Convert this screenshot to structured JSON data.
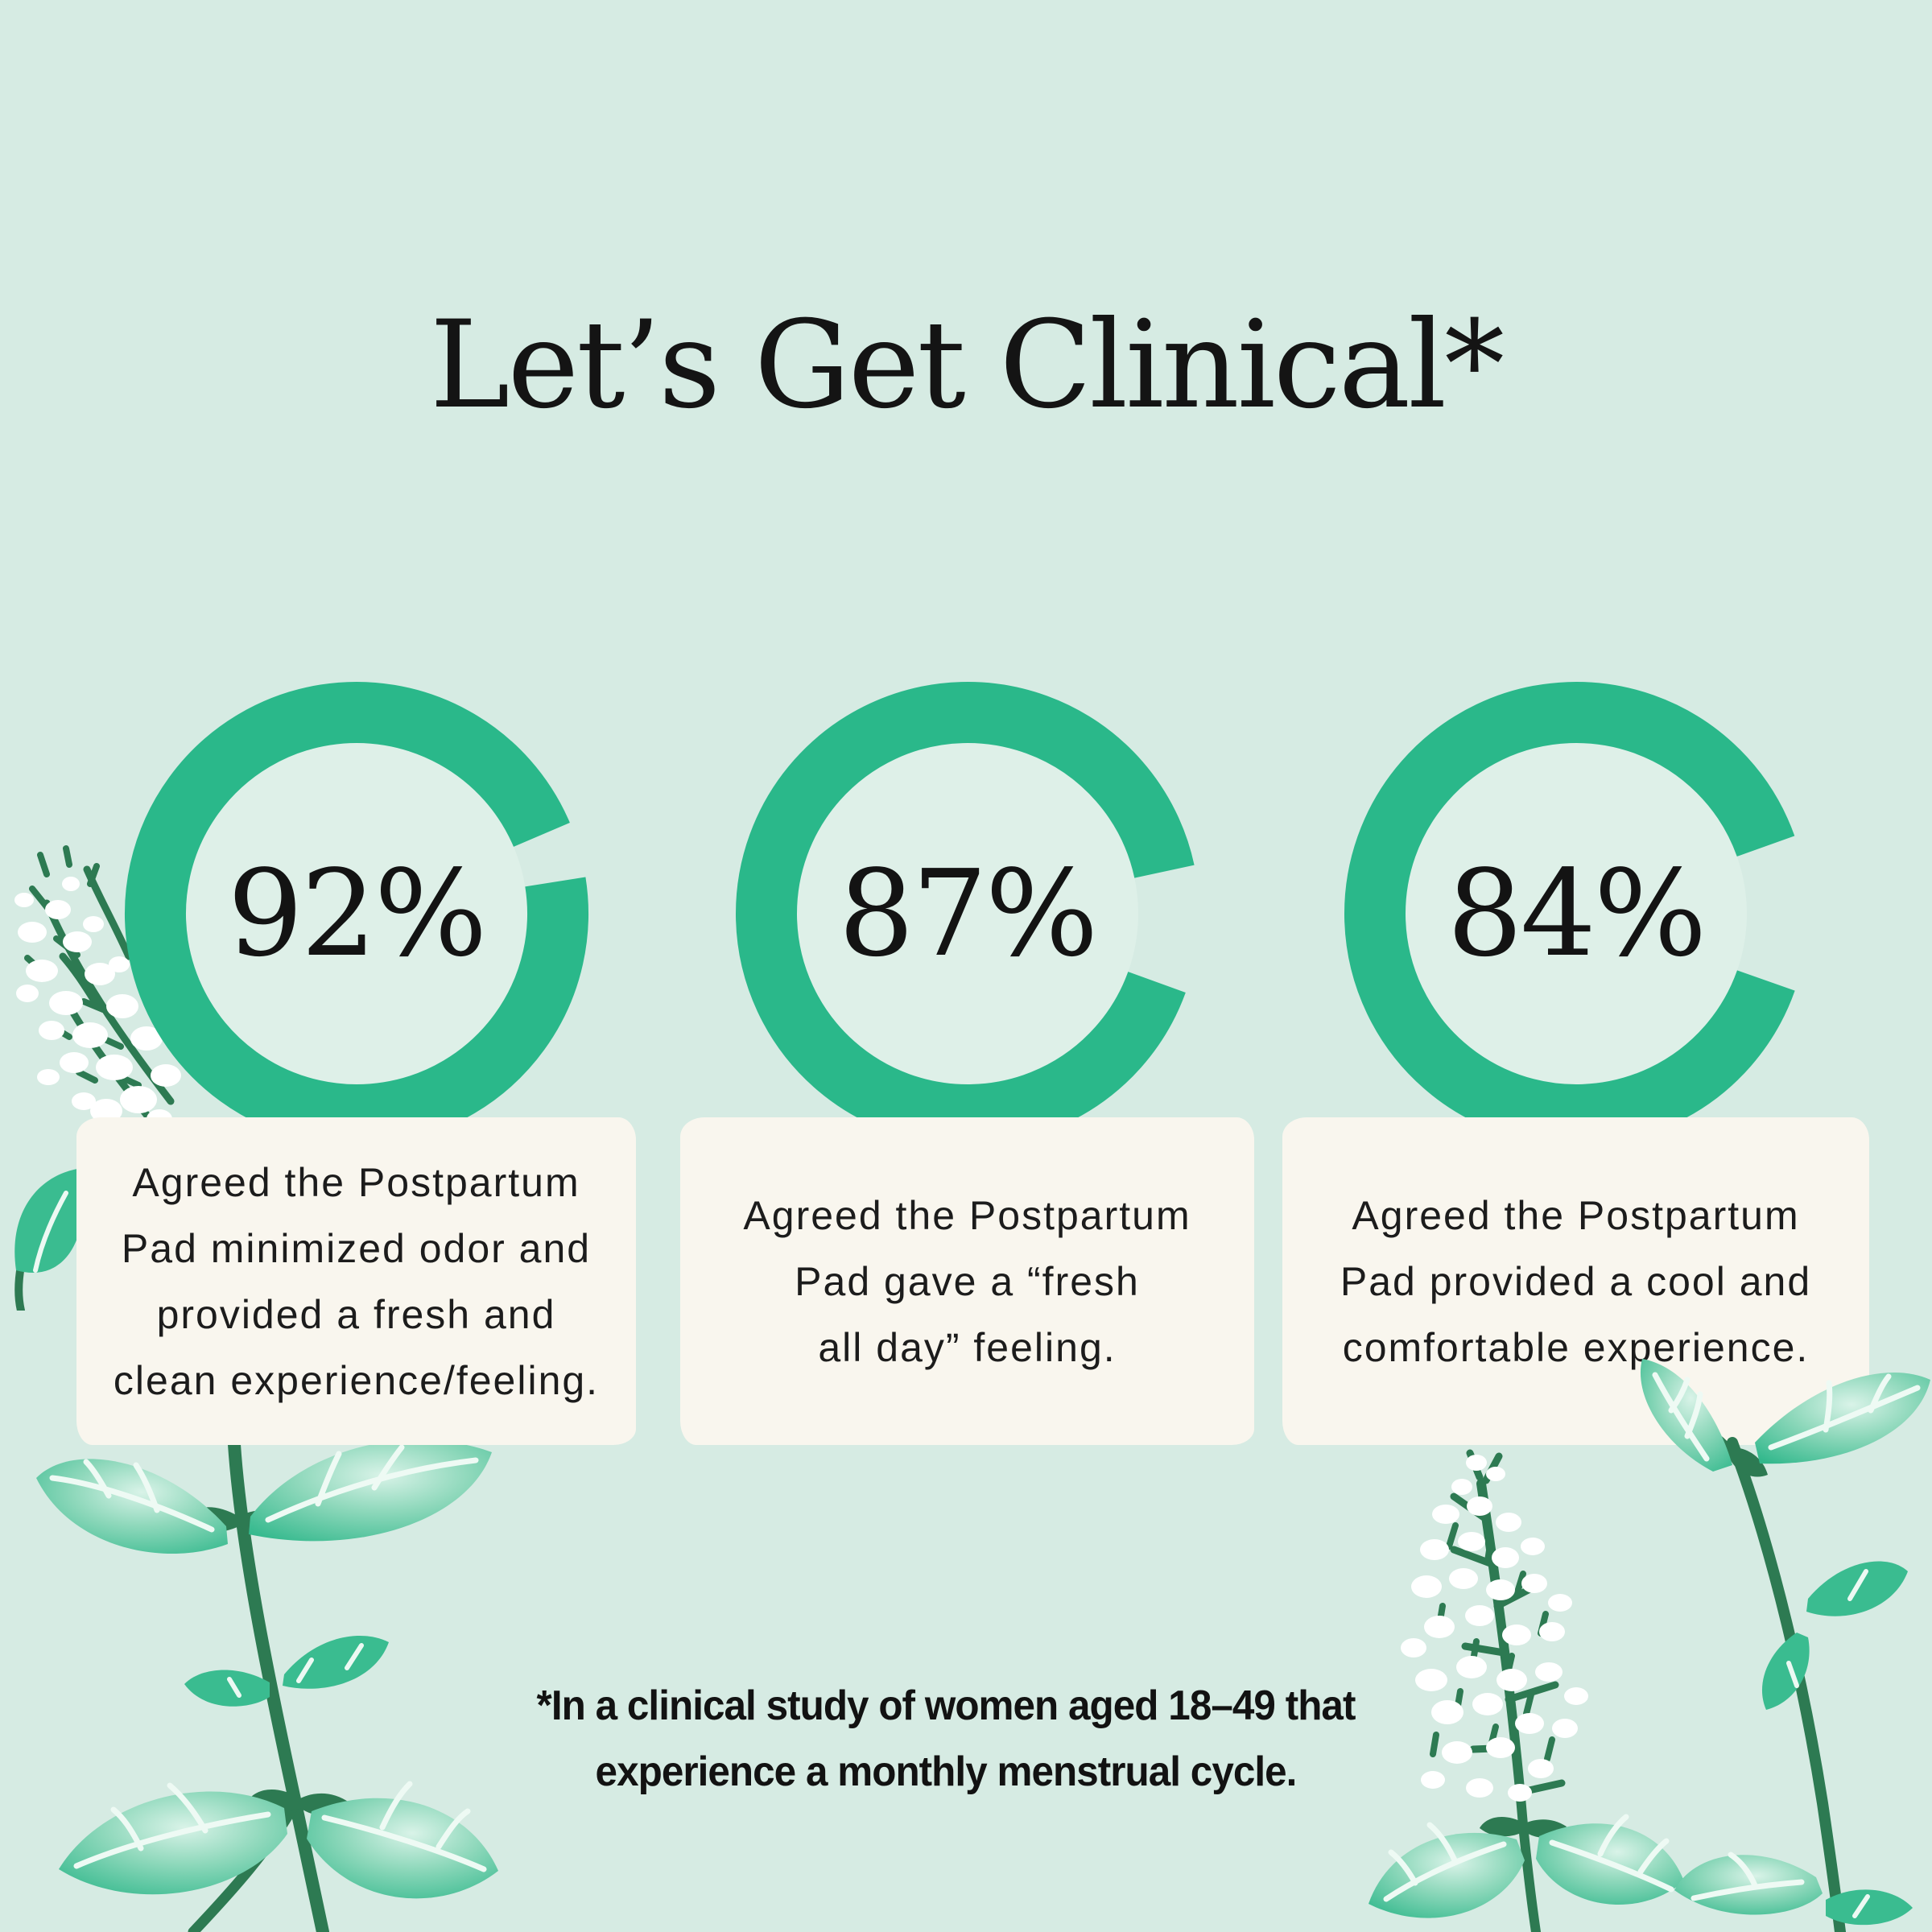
{
  "title": "Let’s Get Clinical*",
  "colors": {
    "background": "#d6ebe3",
    "ring": "#2ab88a",
    "ring_inner": "#def0e8",
    "card_bg": "#f9f6ee",
    "text": "#181818",
    "stem_green": "#2d7a52",
    "leaf_green": "#3abc90",
    "leaf_pale": "#d9f3e8",
    "flower_white": "#ffffff"
  },
  "stats": [
    {
      "value": "92%",
      "lines": [
        "Agreed the Postpartum",
        "Pad minimized odor and",
        "provided a fresh and",
        "clean experience/feeling."
      ]
    },
    {
      "value": "87%",
      "lines": [
        "Agreed the Postpartum",
        "Pad gave a “fresh",
        "all day” feeling."
      ]
    },
    {
      "value": "84%",
      "lines": [
        "Agreed the Postpartum",
        "Pad provided a cool and",
        "comfortable experience."
      ]
    }
  ],
  "footnote": {
    "lines": [
      "*In a clinical study of women aged 18–49 that",
      "experience a monthly menstrual cycle."
    ]
  },
  "illustrations": [
    "mint-flower-spray",
    "mint-plant-bottom-left",
    "mint-flower-spike",
    "mint-branch-bottom-right"
  ],
  "chart_data": {
    "type": "pie",
    "variant": "donut-progress-rings",
    "title": "Let’s Get Clinical*",
    "units": "percent of women agreeing",
    "legend": false,
    "series": [
      {
        "label": "Minimized odor and provided a fresh and clean experience/feeling",
        "value": 92,
        "remainder": 8
      },
      {
        "label": "Gave a “fresh all day” feeling",
        "value": 87,
        "remainder": 13
      },
      {
        "label": "Provided a cool and comfortable experience",
        "value": 84,
        "remainder": 16
      }
    ],
    "layout_hints": {
      "ring_color": "#2ab88a",
      "ring_thickness_px": 76,
      "gap_display_deg": [
        14,
        32,
        39
      ],
      "gap_center_deg": [
        74,
        94,
        90
      ],
      "value_label_position": "center"
    }
  }
}
